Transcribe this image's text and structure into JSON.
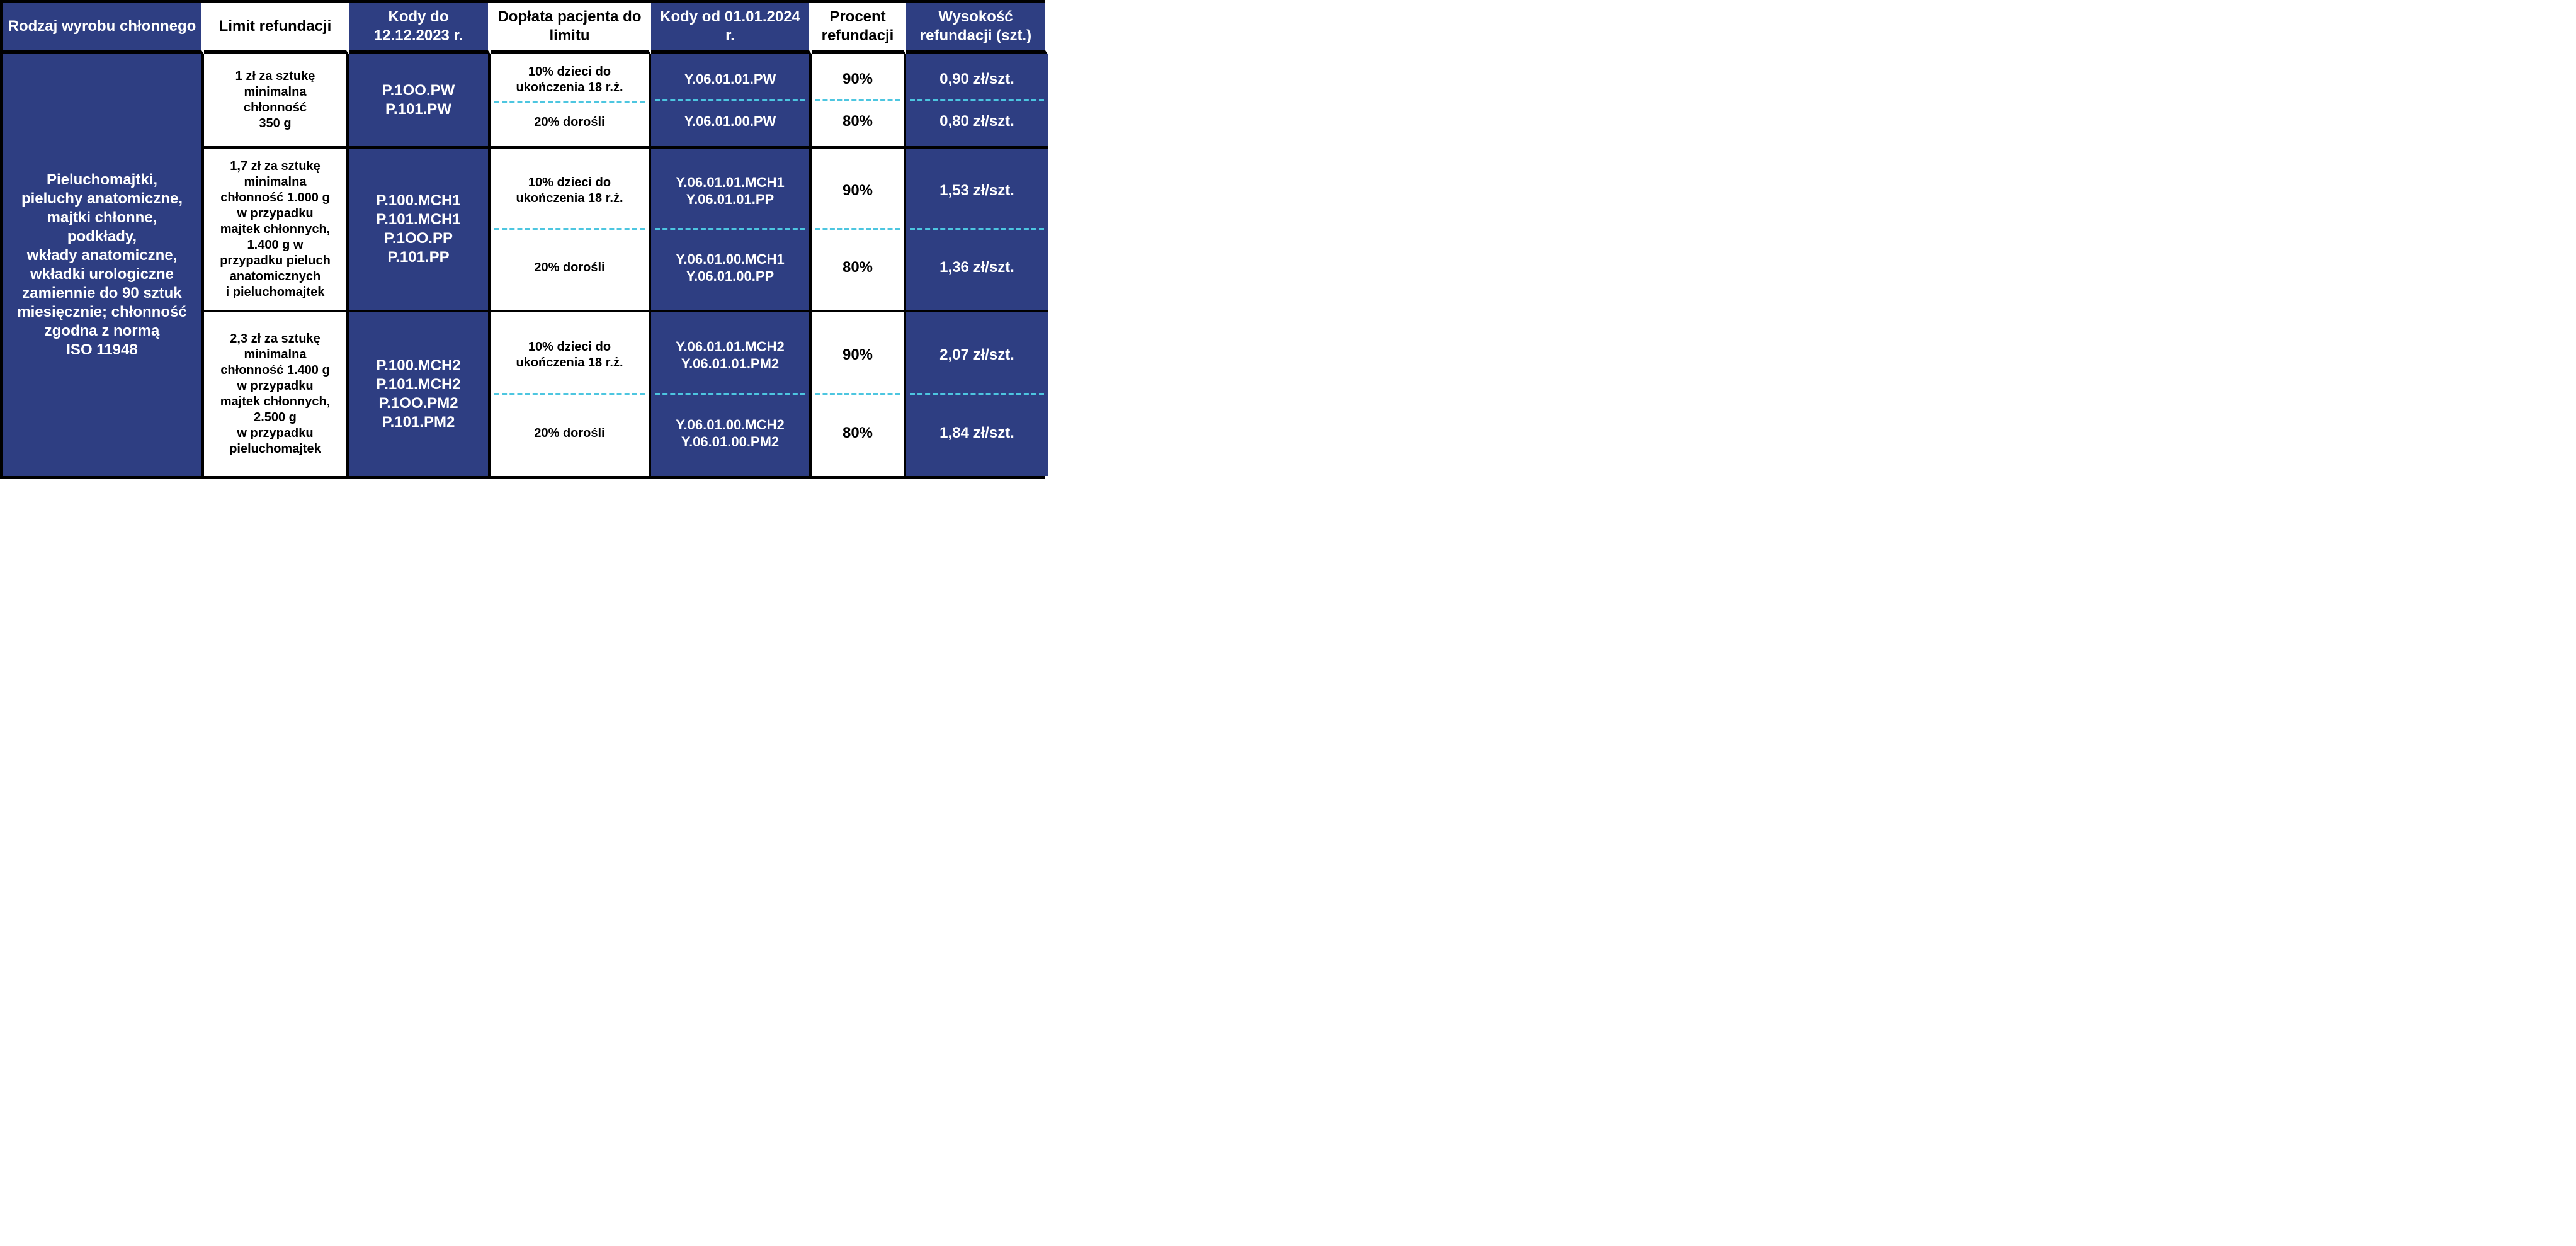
{
  "colors": {
    "blue_bg": "#2e3e82",
    "white_bg": "#ffffff",
    "text_on_blue": "#ffffff",
    "text_on_white": "#000000",
    "dashed_divider": "#4dc6e0",
    "solid_border": "#000000"
  },
  "headers": {
    "c0": "Rodzaj wyrobu chłonnego",
    "c1": "Limit refundacji",
    "c2": "Kody do 12.12.2023 r.",
    "c3": "Dopłata pacjenta do limitu",
    "c4": "Kody od 01.01.2024 r.",
    "c5": "Procent refundacji",
    "c6": "Wysokość refundacji (szt.)"
  },
  "col0": "Pieluchomajtki,\npieluchy anatomiczne,\nmajtki chłonne,\npodkłady,\nwkłady anatomiczne,\nwkładki urologiczne\nzamiennie do 90 sztuk\nmiesięcznie; chłonność\nzgodna z normą\nISO 11948",
  "rows": {
    "r0": {
      "limit": "1 zł za sztukę\nminimalna\nchłonność\n350 g",
      "old_codes": "P.1OO.PW\nP.101.PW",
      "pay_top": "10% dzieci do ukończenia 18 r.ż.",
      "pay_bot": "20% dorośli",
      "new_top": "Y.06.01.01.PW",
      "new_bot": "Y.06.01.00.PW",
      "pct_top": "90%",
      "pct_bot": "80%",
      "amt_top": "0,90 zł/szt.",
      "amt_bot": "0,80 zł/szt."
    },
    "r1": {
      "limit": "1,7 zł za sztukę\nminimalna\nchłonność 1.000 g\nw przypadku\nmajtek chłonnych,\n1.400 g w\nprzypadku pieluch\nanatomicznych\ni pieluchomajtek",
      "old_codes": "P.100.MCH1\nP.101.MCH1\nP.1OO.PP\nP.101.PP",
      "pay_top": "10% dzieci do ukończenia 18 r.ż.",
      "pay_bot": "20% dorośli",
      "new_top": "Y.06.01.01.MCH1\nY.06.01.01.PP",
      "new_bot": "Y.06.01.00.MCH1\nY.06.01.00.PP",
      "pct_top": "90%",
      "pct_bot": "80%",
      "amt_top": "1,53 zł/szt.",
      "amt_bot": "1,36 zł/szt."
    },
    "r2": {
      "limit": "2,3 zł za sztukę\nminimalna\nchłonność 1.400 g\nw przypadku\nmajtek chłonnych,\n2.500 g\nw przypadku\npieluchomajtek",
      "old_codes": "P.100.MCH2\nP.101.MCH2\nP.1OO.PM2\nP.101.PM2",
      "pay_top": "10% dzieci do ukończenia 18 r.ż.",
      "pay_bot": "20% dorośli",
      "new_top": "Y.06.01.01.MCH2\nY.06.01.01.PM2",
      "new_bot": "Y.06.01.00.MCH2\nY.06.01.00.PM2",
      "pct_top": "90%",
      "pct_bot": "80%",
      "amt_top": "2,07 zł/szt.",
      "amt_bot": "1,84 zł/szt."
    }
  }
}
